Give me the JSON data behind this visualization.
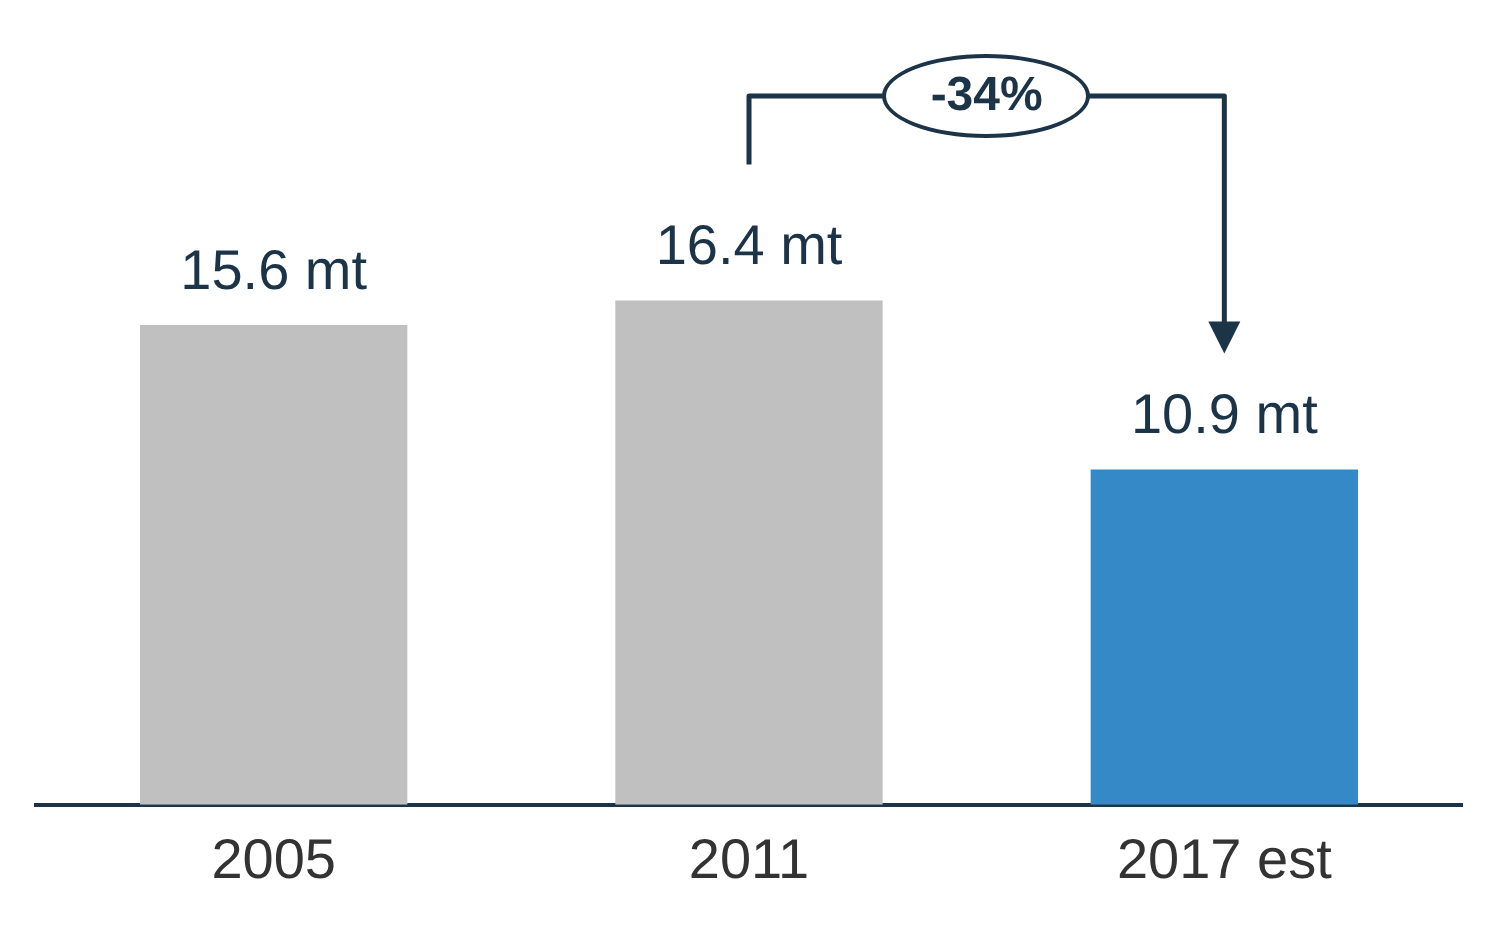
{
  "chart_data": {
    "type": "bar",
    "categories": [
      "2005",
      "2011",
      "2017 est"
    ],
    "values": [
      15.6,
      16.4,
      10.9
    ],
    "colors": [
      "#c0c0c0",
      "#c0c0c0",
      "#3589c6"
    ],
    "value_labels": [
      "15.6 mt",
      "16.4 mt",
      "10.9 mt"
    ],
    "annotations": [
      "-34%"
    ],
    "grid": false,
    "legend": false
  }
}
